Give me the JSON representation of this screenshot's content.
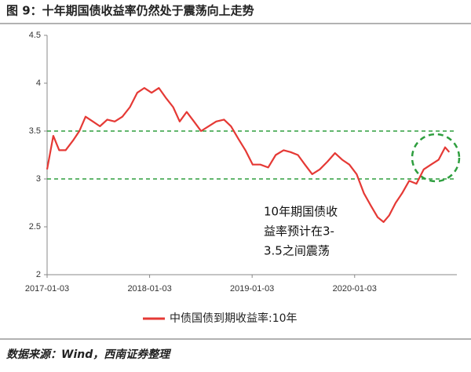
{
  "chart_data": {
    "type": "line",
    "title": "图 9：十年期国债收益率仍然处于震荡向上走势",
    "source": "数据来源：Wind，西南证券整理",
    "annotation": [
      "10年期国债收",
      "益率预计在3-",
      "3.5之间震荡"
    ],
    "x": [
      "2017-01-03",
      "2017-01-25",
      "2017-02-15",
      "2017-03-10",
      "2017-04-05",
      "2017-04-28",
      "2017-05-20",
      "2017-06-15",
      "2017-07-10",
      "2017-08-05",
      "2017-09-01",
      "2017-09-28",
      "2017-10-25",
      "2017-11-20",
      "2017-12-15",
      "2018-01-10",
      "2018-02-05",
      "2018-03-01",
      "2018-03-28",
      "2018-04-20",
      "2018-05-15",
      "2018-06-10",
      "2018-07-05",
      "2018-08-01",
      "2018-08-28",
      "2018-09-25",
      "2018-10-20",
      "2018-11-15",
      "2018-12-10",
      "2019-01-05",
      "2019-02-01",
      "2019-03-01",
      "2019-03-28",
      "2019-04-25",
      "2019-05-20",
      "2019-06-15",
      "2019-07-10",
      "2019-08-05",
      "2019-09-01",
      "2019-09-28",
      "2019-10-25",
      "2019-11-20",
      "2019-12-15",
      "2020-01-10",
      "2020-02-05",
      "2020-03-01",
      "2020-03-25",
      "2020-04-15",
      "2020-05-05",
      "2020-05-28",
      "2020-06-20",
      "2020-07-15",
      "2020-08-10",
      "2020-09-05",
      "2020-10-01",
      "2020-10-28",
      "2020-11-20",
      "2020-12-05"
    ],
    "series": [
      {
        "name": "中债国债到期收益率:10年",
        "color": "#e53935",
        "values": [
          3.1,
          3.45,
          3.3,
          3.3,
          3.4,
          3.5,
          3.65,
          3.6,
          3.55,
          3.62,
          3.6,
          3.65,
          3.75,
          3.9,
          3.95,
          3.9,
          3.95,
          3.85,
          3.75,
          3.6,
          3.7,
          3.6,
          3.5,
          3.55,
          3.6,
          3.62,
          3.55,
          3.42,
          3.3,
          3.15,
          3.15,
          3.12,
          3.25,
          3.3,
          3.28,
          3.25,
          3.15,
          3.05,
          3.1,
          3.18,
          3.27,
          3.2,
          3.15,
          3.05,
          2.85,
          2.72,
          2.6,
          2.55,
          2.62,
          2.75,
          2.85,
          2.98,
          2.95,
          3.1,
          3.15,
          3.2,
          3.33,
          3.28
        ]
      }
    ],
    "xlim": [
      "2017-01-03",
      "2021-01-01"
    ],
    "xticks": [
      "2017-01-03",
      "2018-01-03",
      "2019-01-03",
      "2020-01-03"
    ],
    "ylim": [
      2,
      4.5
    ],
    "yticks": [
      2,
      2.5,
      3,
      3.5,
      4,
      4.5
    ],
    "reference_lines": [
      3,
      3.5
    ],
    "reference_color": "#2e9e3e"
  }
}
